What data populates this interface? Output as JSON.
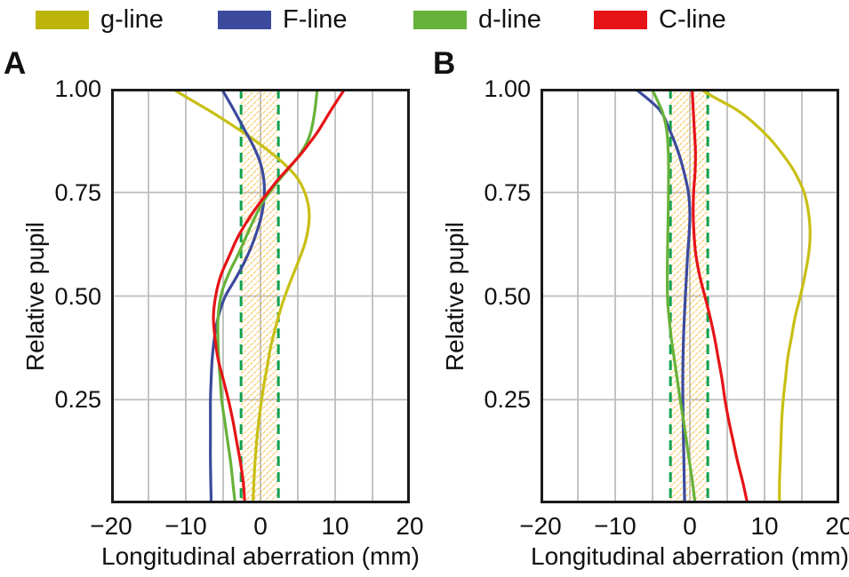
{
  "legend": {
    "items": [
      {
        "label": "g-line",
        "color": "#bdb40a"
      },
      {
        "label": "F-line",
        "color": "#3c4a9d"
      },
      {
        "label": "d-line",
        "color": "#67b23a"
      },
      {
        "label": "C-line",
        "color": "#e61317"
      }
    ]
  },
  "colors": {
    "frame": "#1a1a1a",
    "grid": "#bdbdbd",
    "band_hatch": "#f0a300",
    "band_edge": "#12a150",
    "text": "#111111"
  },
  "chart_data": [
    {
      "type": "line",
      "panel_letter": "A",
      "xlabel": "Longitudinal aberration (mm)",
      "ylabel": "Relative pupil",
      "xlim": [
        -20,
        20
      ],
      "ylim": [
        0,
        1
      ],
      "grid": true,
      "legend_position": "top",
      "x_grid_step": 5,
      "x_tick_values": [
        -20,
        -10,
        0,
        10,
        20
      ],
      "x_tick_labels": [
        "−20",
        "−10",
        "0",
        "10",
        "20"
      ],
      "y_tick_values": [
        1.0,
        0.75,
        0.5,
        0.25
      ],
      "y_tick_labels": [
        "1.00",
        "0.75",
        "0.50",
        "0.25"
      ],
      "band": {
        "x_min": -2.6,
        "x_max": 2.4
      },
      "series": [
        {
          "name": "g-line",
          "color": "#c8bf14",
          "points": [
            [
              1.0,
              -11.8
            ],
            [
              0.97,
              -9.0
            ],
            [
              0.94,
              -6.2
            ],
            [
              0.91,
              -3.6
            ],
            [
              0.88,
              -1.1
            ],
            [
              0.85,
              1.1
            ],
            [
              0.82,
              3.1
            ],
            [
              0.79,
              4.7
            ],
            [
              0.76,
              5.7
            ],
            [
              0.72,
              6.4
            ],
            [
              0.68,
              6.5
            ],
            [
              0.63,
              6.0
            ],
            [
              0.58,
              5.0
            ],
            [
              0.53,
              3.9
            ],
            [
              0.48,
              2.9
            ],
            [
              0.43,
              2.1
            ],
            [
              0.38,
              1.4
            ],
            [
              0.33,
              0.9
            ],
            [
              0.28,
              0.4
            ],
            [
              0.23,
              0.0
            ],
            [
              0.18,
              -0.35
            ],
            [
              0.13,
              -0.6
            ],
            [
              0.08,
              -0.8
            ],
            [
              0.0,
              -1.0
            ]
          ]
        },
        {
          "name": "F-line",
          "color": "#3c4a9d",
          "points": [
            [
              1.0,
              -5.2
            ],
            [
              0.95,
              -3.6
            ],
            [
              0.9,
              -2.1
            ],
            [
              0.86,
              -0.9
            ],
            [
              0.82,
              0.0
            ],
            [
              0.78,
              0.45
            ],
            [
              0.74,
              0.5
            ],
            [
              0.7,
              0.2
            ],
            [
              0.66,
              -0.4
            ],
            [
              0.62,
              -1.2
            ],
            [
              0.58,
              -2.2
            ],
            [
              0.54,
              -3.4
            ],
            [
              0.5,
              -4.7
            ],
            [
              0.46,
              -5.5
            ],
            [
              0.42,
              -6.0
            ],
            [
              0.38,
              -6.3
            ],
            [
              0.34,
              -6.5
            ],
            [
              0.3,
              -6.6
            ],
            [
              0.25,
              -6.7
            ],
            [
              0.18,
              -6.7
            ],
            [
              0.1,
              -6.7
            ],
            [
              0.0,
              -6.6
            ]
          ]
        },
        {
          "name": "d-line",
          "color": "#67b23a",
          "points": [
            [
              1.0,
              7.6
            ],
            [
              0.95,
              7.3
            ],
            [
              0.9,
              6.8
            ],
            [
              0.87,
              6.2
            ],
            [
              0.84,
              5.2
            ],
            [
              0.81,
              3.9
            ],
            [
              0.78,
              2.5
            ],
            [
              0.75,
              1.2
            ],
            [
              0.72,
              0.1
            ],
            [
              0.68,
              -1.0
            ],
            [
              0.64,
              -2.0
            ],
            [
              0.6,
              -3.0
            ],
            [
              0.56,
              -4.1
            ],
            [
              0.52,
              -5.0
            ],
            [
              0.48,
              -5.5
            ],
            [
              0.44,
              -5.7
            ],
            [
              0.4,
              -5.7
            ],
            [
              0.35,
              -5.6
            ],
            [
              0.3,
              -5.4
            ],
            [
              0.25,
              -5.2
            ],
            [
              0.2,
              -4.8
            ],
            [
              0.15,
              -4.4
            ],
            [
              0.1,
              -4.0
            ],
            [
              0.05,
              -3.7
            ],
            [
              0.0,
              -3.4
            ]
          ]
        },
        {
          "name": "C-line",
          "color": "#e61317",
          "points": [
            [
              1.0,
              11.3
            ],
            [
              0.95,
              9.5
            ],
            [
              0.9,
              7.8
            ],
            [
              0.87,
              6.6
            ],
            [
              0.84,
              5.3
            ],
            [
              0.81,
              3.8
            ],
            [
              0.78,
              2.3
            ],
            [
              0.75,
              1.0
            ],
            [
              0.72,
              -0.3
            ],
            [
              0.68,
              -1.8
            ],
            [
              0.64,
              -3.1
            ],
            [
              0.6,
              -4.1
            ],
            [
              0.55,
              -5.3
            ],
            [
              0.5,
              -6.0
            ],
            [
              0.45,
              -6.3
            ],
            [
              0.4,
              -6.1
            ],
            [
              0.35,
              -5.7
            ],
            [
              0.3,
              -5.0
            ],
            [
              0.25,
              -4.3
            ],
            [
              0.2,
              -3.7
            ],
            [
              0.15,
              -3.2
            ],
            [
              0.1,
              -2.7
            ],
            [
              0.05,
              -2.3
            ],
            [
              0.0,
              -2.1
            ]
          ]
        }
      ]
    },
    {
      "type": "line",
      "panel_letter": "B",
      "xlabel": "Longitudinal aberration (mm)",
      "ylabel": "Relative pupil",
      "xlim": [
        -20,
        20
      ],
      "ylim": [
        0,
        1
      ],
      "grid": true,
      "legend_position": "top",
      "x_grid_step": 5,
      "x_tick_values": [
        -20,
        -10,
        0,
        10,
        20
      ],
      "x_tick_labels": [
        "−20",
        "−10",
        "0",
        "10",
        "20"
      ],
      "y_tick_values": [
        1.0,
        0.75,
        0.5,
        0.25
      ],
      "y_tick_labels": [
        "1.00",
        "0.75",
        "0.50",
        "0.25"
      ],
      "band": {
        "x_min": -2.6,
        "x_max": 2.4
      },
      "series": [
        {
          "name": "g-line",
          "color": "#c8bf14",
          "points": [
            [
              1.0,
              1.3
            ],
            [
              0.98,
              3.2
            ],
            [
              0.95,
              6.2
            ],
            [
              0.92,
              8.4
            ],
            [
              0.88,
              10.7
            ],
            [
              0.84,
              12.5
            ],
            [
              0.8,
              14.0
            ],
            [
              0.75,
              15.3
            ],
            [
              0.7,
              15.9
            ],
            [
              0.65,
              16.1
            ],
            [
              0.6,
              15.9
            ],
            [
              0.55,
              15.4
            ],
            [
              0.5,
              14.8
            ],
            [
              0.45,
              14.1
            ],
            [
              0.4,
              13.6
            ],
            [
              0.35,
              13.1
            ],
            [
              0.3,
              12.8
            ],
            [
              0.25,
              12.5
            ],
            [
              0.2,
              12.3
            ],
            [
              0.15,
              12.2
            ],
            [
              0.1,
              12.1
            ],
            [
              0.05,
              12.0
            ],
            [
              0.0,
              12.0
            ]
          ]
        },
        {
          "name": "F-line",
          "color": "#3c4a9d",
          "points": [
            [
              1.0,
              -7.3
            ],
            [
              0.95,
              -4.1
            ],
            [
              0.9,
              -2.7
            ],
            [
              0.85,
              -1.6
            ],
            [
              0.8,
              -0.8
            ],
            [
              0.75,
              -0.2
            ],
            [
              0.7,
              0.0
            ],
            [
              0.65,
              -0.1
            ],
            [
              0.6,
              -0.3
            ],
            [
              0.55,
              -0.45
            ],
            [
              0.5,
              -0.6
            ],
            [
              0.4,
              -0.85
            ],
            [
              0.3,
              -0.95
            ],
            [
              0.2,
              -0.9
            ],
            [
              0.1,
              -0.8
            ],
            [
              0.0,
              -0.7
            ]
          ]
        },
        {
          "name": "d-line",
          "color": "#67b23a",
          "points": [
            [
              1.0,
              -5.1
            ],
            [
              0.97,
              -4.3
            ],
            [
              0.94,
              -3.6
            ],
            [
              0.9,
              -3.1
            ],
            [
              0.85,
              -2.9
            ],
            [
              0.8,
              -2.85
            ],
            [
              0.7,
              -2.9
            ],
            [
              0.6,
              -3.0
            ],
            [
              0.5,
              -3.0
            ],
            [
              0.45,
              -2.8
            ],
            [
              0.4,
              -2.5
            ],
            [
              0.35,
              -2.1
            ],
            [
              0.3,
              -1.7
            ],
            [
              0.25,
              -1.3
            ],
            [
              0.2,
              -0.85
            ],
            [
              0.15,
              -0.45
            ],
            [
              0.1,
              -0.05
            ],
            [
              0.05,
              0.35
            ],
            [
              0.0,
              0.7
            ]
          ]
        },
        {
          "name": "C-line",
          "color": "#e61317",
          "points": [
            [
              1.0,
              0.3
            ],
            [
              0.95,
              0.45
            ],
            [
              0.9,
              0.6
            ],
            [
              0.85,
              0.75
            ],
            [
              0.8,
              0.7
            ],
            [
              0.75,
              0.5
            ],
            [
              0.7,
              0.45
            ],
            [
              0.65,
              0.55
            ],
            [
              0.6,
              0.8
            ],
            [
              0.55,
              1.3
            ],
            [
              0.5,
              2.0
            ],
            [
              0.45,
              2.7
            ],
            [
              0.4,
              3.3
            ],
            [
              0.35,
              3.8
            ],
            [
              0.3,
              4.3
            ],
            [
              0.25,
              4.7
            ],
            [
              0.2,
              5.2
            ],
            [
              0.15,
              5.8
            ],
            [
              0.1,
              6.4
            ],
            [
              0.05,
              7.1
            ],
            [
              0.0,
              7.7
            ]
          ]
        }
      ]
    }
  ]
}
